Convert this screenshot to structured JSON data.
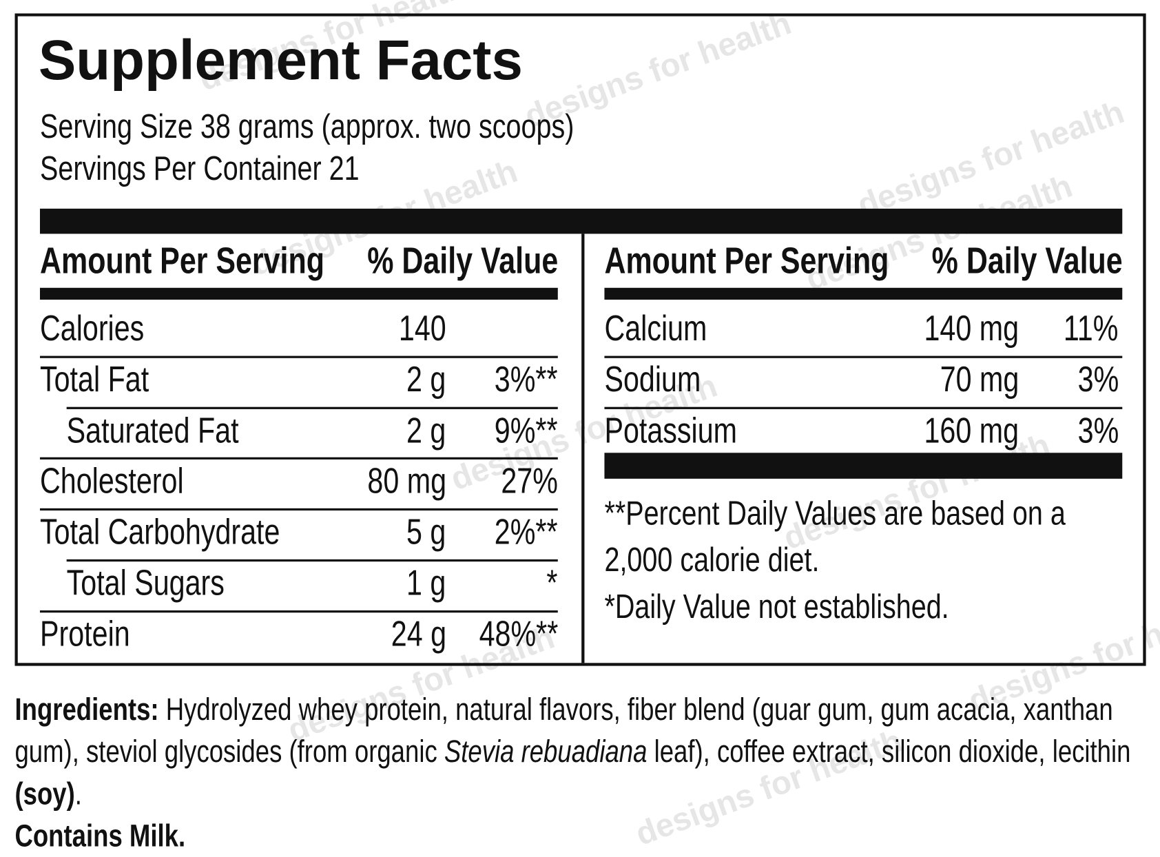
{
  "watermark": "designs for health",
  "title": "Supplement Facts",
  "serving_size": "Serving Size 38 grams (approx. two scoops)",
  "servings_per_container": "Servings Per Container 21",
  "left_table": {
    "header": [
      "Amount Per Serving",
      "% Daily Value"
    ],
    "rows": [
      {
        "name": "Calories",
        "amount": "140"
      },
      {
        "name": "Total Fat",
        "amount": "2 g",
        "dv": "3%**"
      },
      {
        "name": "Saturated Fat",
        "amount": "2 g",
        "dv": "9%**",
        "indent": true
      },
      {
        "name": "Cholesterol",
        "amount": "80 mg",
        "dv": "27%"
      },
      {
        "name": "Total Carbohydrate",
        "amount": "5 g",
        "dv": "2%**"
      },
      {
        "name": "Total Sugars",
        "amount": "1 g",
        "dv": "*",
        "indent": true
      },
      {
        "name": "Protein",
        "amount": "24 g",
        "dv": "48%**"
      }
    ]
  },
  "right_table": {
    "header": [
      "Amount Per Serving",
      "% Daily Value"
    ],
    "rows": [
      {
        "name": "Calcium",
        "amount": "140 mg",
        "dv": "11%"
      },
      {
        "name": "Sodium",
        "amount": "70 mg",
        "dv": "3%"
      },
      {
        "name": "Potassium",
        "amount": "160 mg",
        "dv": "3%"
      }
    ]
  },
  "footnotes": [
    "**Percent Daily Values are based on a 2,000 calorie diet.",
    "*Daily Value not established."
  ],
  "ingredients": [
    {
      "text": "Ingredients:",
      "style": "bold"
    },
    {
      "text": " Hydrolyzed whey protein, natural flavors, fiber blend (guar gum, gum acacia, xanthan gum), steviol glycosides (from organic ",
      "style": "normal"
    },
    {
      "text": "Stevia rebuadiana",
      "style": "italic"
    },
    {
      "text": " leaf), coffee extract, silicon dioxide, lecithin ",
      "style": "normal"
    },
    {
      "text": "(soy)",
      "style": "bold"
    },
    {
      "text": ".",
      "style": "normal"
    }
  ],
  "allergen": "Contains Milk."
}
